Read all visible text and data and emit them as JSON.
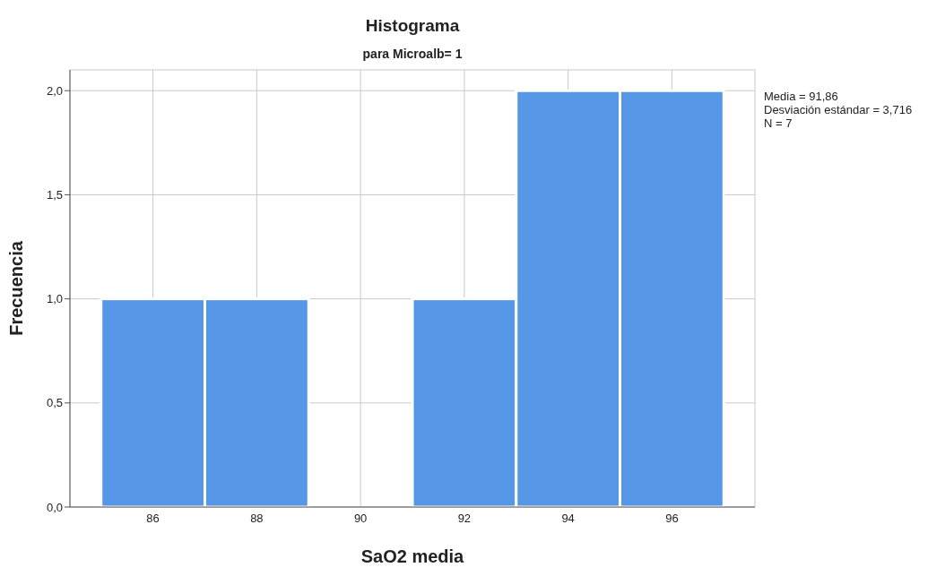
{
  "chart_data": {
    "type": "histogram",
    "title": "Histograma",
    "subtitle": "para Microalb= 1",
    "xlabel": "SaO2 media",
    "ylabel": "Frecuencia",
    "bins": [
      85,
      87,
      89,
      91,
      93,
      95,
      97
    ],
    "values": [
      1,
      1,
      0,
      1,
      2,
      2
    ],
    "color": "#5596e6",
    "xlim": [
      84.4,
      97.6
    ],
    "xticks": [
      86,
      88,
      90,
      92,
      94,
      96
    ],
    "ylim": [
      0,
      2.1
    ],
    "yticks": [
      {
        "value": 0,
        "label": "0,0"
      },
      {
        "value": 0.5,
        "label": "0,5"
      },
      {
        "value": 1,
        "label": "1,0"
      },
      {
        "value": 1.5,
        "label": "1,5"
      },
      {
        "value": 2,
        "label": "2,0"
      }
    ],
    "grid": true,
    "annotations": [
      "Media = 91,86",
      "Desviación estándar = 3,716",
      "N = 7"
    ]
  }
}
